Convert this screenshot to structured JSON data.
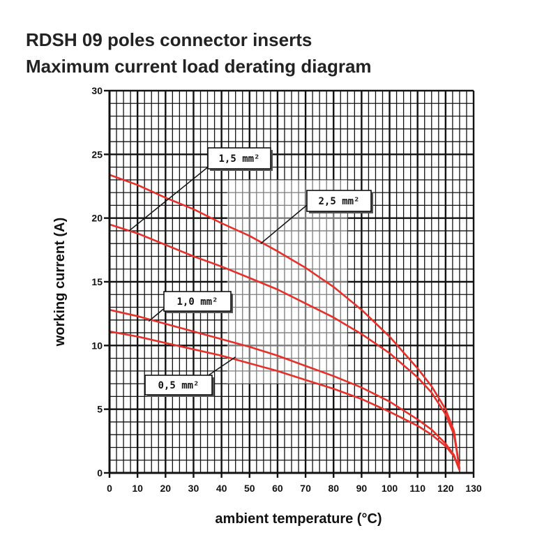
{
  "chart_data": {
    "type": "line",
    "title": "RDSH 09 poles connector inserts",
    "subtitle": "Maximum current load derating diagram",
    "xlabel": "ambient temperature (°C)",
    "ylabel": "working current (A)",
    "xlim": [
      0,
      130
    ],
    "ylim": [
      0,
      30
    ],
    "xticks": [
      "0",
      "10",
      "20",
      "30",
      "40",
      "50",
      "60",
      "70",
      "80",
      "90",
      "100",
      "110",
      "120",
      "130"
    ],
    "yticks": [
      "0",
      "5",
      "10",
      "15",
      "20",
      "25",
      "30"
    ],
    "grid": true,
    "series": [
      {
        "name": "1,5 mm²",
        "color": "#e8302a",
        "x": [
          0,
          10,
          20,
          30,
          40,
          50,
          60,
          70,
          80,
          90,
          100,
          110,
          115,
          120,
          123,
          125
        ],
        "y": [
          19.5,
          18.8,
          17.9,
          17.0,
          16.2,
          15.3,
          14.4,
          13.3,
          12.2,
          10.9,
          9.4,
          7.5,
          6.3,
          4.6,
          3.0,
          0.3
        ]
      },
      {
        "name": "2,5 mm²",
        "color": "#e8302a",
        "x": [
          0,
          10,
          20,
          30,
          40,
          50,
          60,
          70,
          80,
          90,
          100,
          110,
          115,
          120,
          123,
          125
        ],
        "y": [
          23.4,
          22.6,
          21.6,
          20.7,
          19.6,
          18.6,
          17.4,
          16.1,
          14.6,
          12.8,
          10.7,
          8.2,
          6.8,
          5.0,
          3.3,
          0.3
        ]
      },
      {
        "name": "1,0 mm²",
        "color": "#e8302a",
        "x": [
          0,
          10,
          20,
          30,
          40,
          50,
          60,
          70,
          80,
          90,
          100,
          110,
          115,
          120,
          123,
          125
        ],
        "y": [
          12.8,
          12.3,
          11.7,
          11.1,
          10.5,
          9.9,
          9.2,
          8.4,
          7.6,
          6.7,
          5.6,
          4.2,
          3.4,
          2.3,
          1.4,
          0.2
        ]
      },
      {
        "name": "0,5 mm²",
        "color": "#e8302a",
        "x": [
          0,
          10,
          20,
          30,
          40,
          50,
          60,
          70,
          80,
          90,
          100,
          110,
          115,
          120,
          123,
          125
        ],
        "y": [
          11.1,
          10.7,
          10.2,
          9.7,
          9.2,
          8.6,
          8.0,
          7.3,
          6.6,
          5.8,
          4.8,
          3.7,
          3.0,
          2.1,
          1.3,
          0.2
        ]
      }
    ],
    "annotations": [
      {
        "label": "1,5 mm²",
        "series": "1,5 mm²"
      },
      {
        "label": "2,5 mm²",
        "series": "2,5 mm²"
      },
      {
        "label": "1,0 mm²",
        "series": "1,0 mm²"
      },
      {
        "label": "0,5 mm²",
        "series": "0,5 mm²"
      }
    ]
  }
}
